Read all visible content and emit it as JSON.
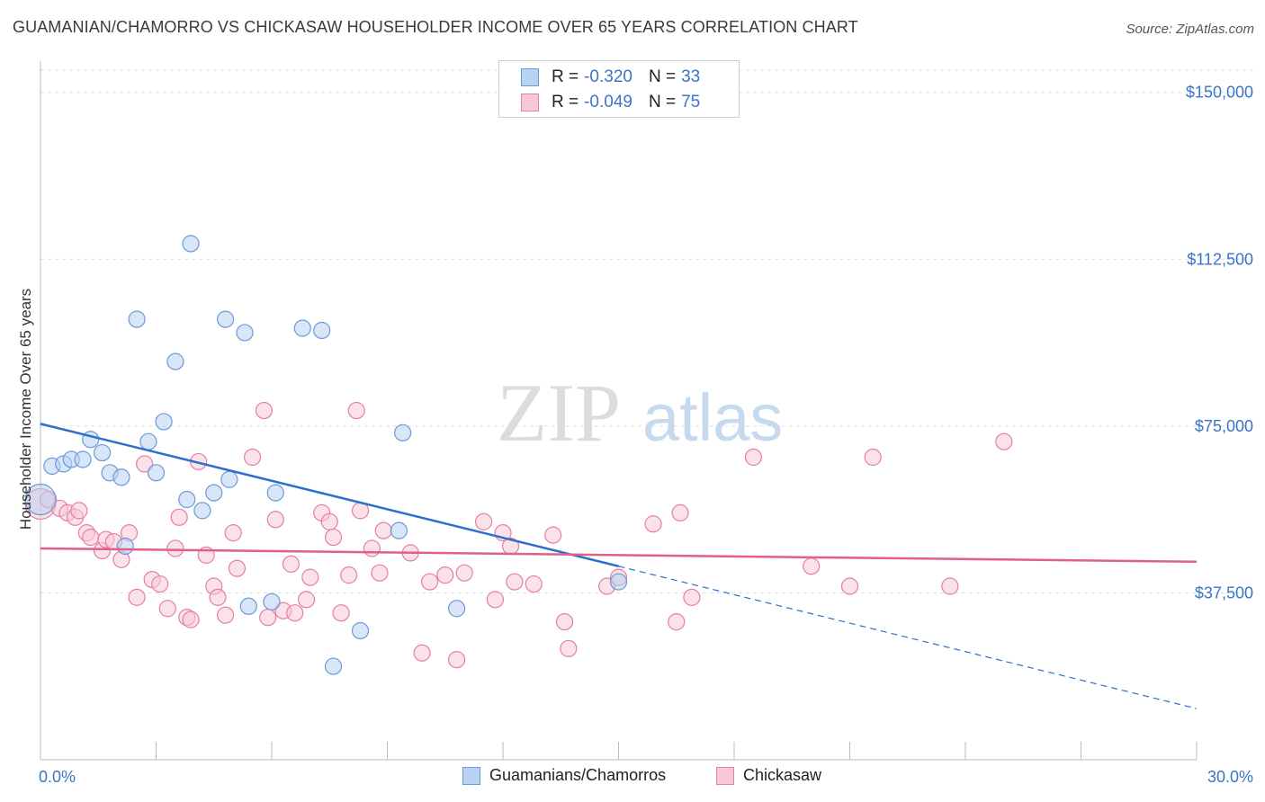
{
  "title": "GUAMANIAN/CHAMORRO VS CHICKASAW HOUSEHOLDER INCOME OVER 65 YEARS CORRELATION CHART",
  "source": "Source: ZipAtlas.com",
  "watermark": {
    "zip": "ZIP",
    "atlas": "atlas"
  },
  "colors": {
    "blue_fill": "#b8d2f2",
    "blue_stroke": "#6a9ad8",
    "blue_line": "#2e6fcc",
    "pink_fill": "#f7c8d6",
    "pink_stroke": "#e67fa0",
    "pink_line": "#e0608a",
    "tick_text": "#3a74c6",
    "grid": "#dddddd"
  },
  "legend": {
    "rows": [
      {
        "r_label": "R =",
        "r_value": "-0.320",
        "n_label": "N =",
        "n_value": "33",
        "series": "blue"
      },
      {
        "r_label": "R =",
        "r_value": "-0.049",
        "n_label": "N =",
        "n_value": "75",
        "series": "pink"
      }
    ]
  },
  "bottom_legend": [
    {
      "label": "Guamanians/Chamorros",
      "series": "blue"
    },
    {
      "label": "Chickasaw",
      "series": "pink"
    }
  ],
  "chart_data": {
    "type": "scatter",
    "title": "GUAMANIAN/CHAMORRO VS CHICKASAW HOUSEHOLDER INCOME OVER 65 YEARS CORRELATION CHART",
    "xlabel": "",
    "ylabel": "Householder Income Over 65 years",
    "xlim": [
      0,
      30
    ],
    "ylim": [
      0,
      155000
    ],
    "x_tick_labels": [
      "0.0%",
      "30.0%"
    ],
    "y_ticks": [
      37500,
      75000,
      112500,
      150000
    ],
    "y_tick_labels": [
      "$37,500",
      "$75,000",
      "$112,500",
      "$150,000"
    ],
    "grid": true,
    "legend_position": "top-center",
    "series": [
      {
        "name": "Guamanians/Chamorros",
        "color": "blue",
        "trend": {
          "x": [
            0,
            15
          ],
          "y": [
            75500,
            43500
          ],
          "dashed_extension": {
            "x": [
              15,
              30
            ],
            "y": [
              43500,
              11500
            ]
          }
        },
        "points": [
          [
            0.0,
            58500
          ],
          [
            0.3,
            66000
          ],
          [
            0.6,
            66500
          ],
          [
            0.8,
            67500
          ],
          [
            1.1,
            67500
          ],
          [
            1.3,
            72000
          ],
          [
            1.6,
            69000
          ],
          [
            1.8,
            64500
          ],
          [
            2.1,
            63500
          ],
          [
            2.2,
            48000
          ],
          [
            2.5,
            99000
          ],
          [
            2.8,
            71500
          ],
          [
            3.0,
            64500
          ],
          [
            3.2,
            76000
          ],
          [
            3.5,
            89500
          ],
          [
            3.8,
            58500
          ],
          [
            3.9,
            116000
          ],
          [
            4.2,
            56000
          ],
          [
            4.5,
            60000
          ],
          [
            4.8,
            99000
          ],
          [
            4.9,
            63000
          ],
          [
            5.3,
            96000
          ],
          [
            5.4,
            34500
          ],
          [
            6.0,
            35500
          ],
          [
            6.1,
            60000
          ],
          [
            6.8,
            97000
          ],
          [
            7.3,
            96500
          ],
          [
            7.6,
            21000
          ],
          [
            8.3,
            29000
          ],
          [
            9.3,
            51500
          ],
          [
            9.4,
            73500
          ],
          [
            10.8,
            34000
          ],
          [
            15.0,
            40000
          ]
        ]
      },
      {
        "name": "Chickasaw",
        "color": "pink",
        "trend": {
          "x": [
            0,
            30
          ],
          "y": [
            47500,
            44500
          ]
        },
        "points": [
          [
            0.0,
            57500
          ],
          [
            0.2,
            58500
          ],
          [
            0.5,
            56500
          ],
          [
            0.7,
            55500
          ],
          [
            0.9,
            54500
          ],
          [
            1.0,
            56000
          ],
          [
            1.2,
            51000
          ],
          [
            1.3,
            50000
          ],
          [
            1.6,
            47000
          ],
          [
            1.7,
            49500
          ],
          [
            1.9,
            49000
          ],
          [
            2.1,
            45000
          ],
          [
            2.3,
            51000
          ],
          [
            2.5,
            36500
          ],
          [
            2.7,
            66500
          ],
          [
            2.9,
            40500
          ],
          [
            3.1,
            39500
          ],
          [
            3.3,
            34000
          ],
          [
            3.5,
            47500
          ],
          [
            3.6,
            54500
          ],
          [
            3.8,
            32000
          ],
          [
            3.9,
            31500
          ],
          [
            4.1,
            67000
          ],
          [
            4.3,
            46000
          ],
          [
            4.5,
            39000
          ],
          [
            4.6,
            36500
          ],
          [
            4.8,
            32500
          ],
          [
            5.0,
            51000
          ],
          [
            5.1,
            43000
          ],
          [
            5.5,
            68000
          ],
          [
            5.8,
            78500
          ],
          [
            5.9,
            32000
          ],
          [
            6.1,
            54000
          ],
          [
            6.3,
            33500
          ],
          [
            6.5,
            44000
          ],
          [
            6.6,
            33000
          ],
          [
            6.9,
            36000
          ],
          [
            7.0,
            41000
          ],
          [
            7.3,
            55500
          ],
          [
            7.5,
            53500
          ],
          [
            7.6,
            50000
          ],
          [
            7.8,
            33000
          ],
          [
            8.0,
            41500
          ],
          [
            8.2,
            78500
          ],
          [
            8.3,
            56000
          ],
          [
            8.6,
            47500
          ],
          [
            8.8,
            42000
          ],
          [
            8.9,
            51500
          ],
          [
            9.6,
            46500
          ],
          [
            9.9,
            24000
          ],
          [
            10.1,
            40000
          ],
          [
            10.5,
            41500
          ],
          [
            10.8,
            22500
          ],
          [
            11.0,
            42000
          ],
          [
            11.5,
            53500
          ],
          [
            11.8,
            36000
          ],
          [
            12.0,
            51000
          ],
          [
            12.2,
            48000
          ],
          [
            12.3,
            40000
          ],
          [
            12.8,
            39500
          ],
          [
            13.3,
            50500
          ],
          [
            13.6,
            31000
          ],
          [
            13.7,
            25000
          ],
          [
            14.7,
            39000
          ],
          [
            15.0,
            41000
          ],
          [
            15.9,
            53000
          ],
          [
            16.5,
            31000
          ],
          [
            16.6,
            55500
          ],
          [
            16.9,
            36500
          ],
          [
            18.5,
            68000
          ],
          [
            20.0,
            43500
          ],
          [
            21.0,
            39000
          ],
          [
            21.6,
            68000
          ],
          [
            23.6,
            39000
          ],
          [
            25.0,
            71500
          ]
        ]
      }
    ]
  }
}
